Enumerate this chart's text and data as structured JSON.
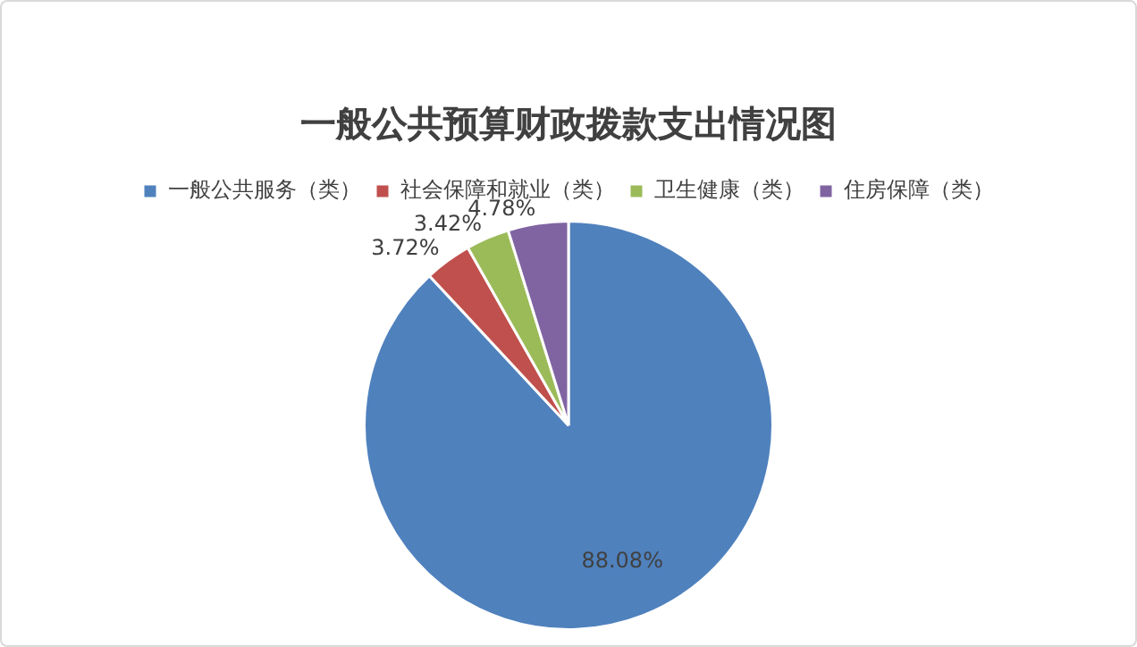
{
  "chart_data": {
    "type": "pie",
    "title": "一般公共预算财政拨款支出情况图",
    "categories": [
      "一般公共服务（类）",
      "社会保障和就业（类）",
      "卫生健康（类）",
      "住房保障（类）"
    ],
    "values": [
      88.08,
      3.72,
      3.42,
      4.78
    ],
    "value_labels": [
      "88.08%",
      "3.72%",
      "3.42%",
      "4.78%"
    ],
    "colors": [
      "#4f81bd",
      "#c0504d",
      "#9bbb59",
      "#8064a2"
    ],
    "legend": "top"
  }
}
